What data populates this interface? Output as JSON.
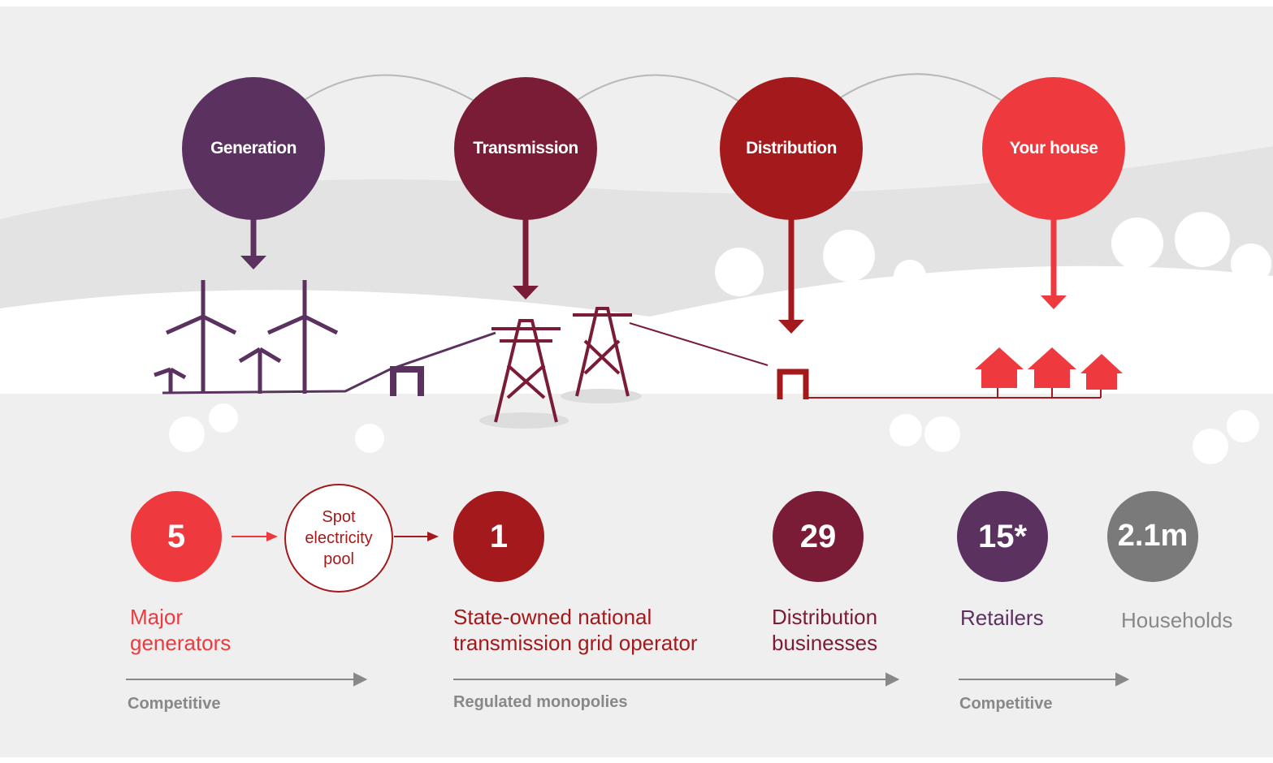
{
  "stages": [
    {
      "label": "Generation"
    },
    {
      "label": "Transmission"
    },
    {
      "label": "Distribution"
    },
    {
      "label": "Your house"
    }
  ],
  "pool": {
    "label": "Spot electricity pool"
  },
  "stats": [
    {
      "value": "5",
      "label": "Major generators"
    },
    {
      "value": "1",
      "label": "State-owned national transmission grid operator"
    },
    {
      "value": "29",
      "label": "Distribution businesses"
    },
    {
      "value": "15*",
      "label": "Retailers"
    },
    {
      "value": "2.1m",
      "label": "Households"
    }
  ],
  "markets": [
    {
      "label": "Competitive"
    },
    {
      "label": "Regulated monopolies"
    },
    {
      "label": "Competitive"
    }
  ]
}
